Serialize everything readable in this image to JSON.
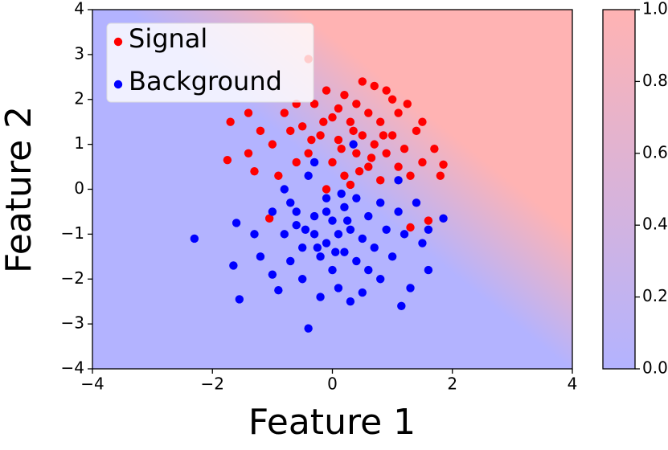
{
  "chart_data": {
    "type": "scatter",
    "xlabel": "Feature 1",
    "ylabel": "Feature 2",
    "xlim": [
      -4,
      4
    ],
    "ylim": [
      -4,
      4
    ],
    "xticks": [
      {
        "value": -4,
        "label": "−4"
      },
      {
        "value": -2,
        "label": "−2"
      },
      0,
      2,
      4
    ],
    "yticks": [
      {
        "value": -4,
        "label": "−4"
      },
      {
        "value": -3,
        "label": "−3"
      },
      {
        "value": -2,
        "label": "−2"
      },
      {
        "value": -1,
        "label": "−1"
      },
      0,
      1,
      2,
      3,
      4
    ],
    "legend": "upper left",
    "colorbar": {
      "colors": [
        "#b3b3ff",
        "#ffb3b3"
      ],
      "ylim": [
        0,
        1
      ],
      "yticks": [
        {
          "value": 0,
          "label": "0.0"
        },
        0.2,
        0.4,
        0.6,
        0.8,
        {
          "value": 1,
          "label": "1.0"
        }
      ]
    },
    "series": [
      {
        "name": "Signal",
        "color": "#ff0000",
        "x": [
          -0.4,
          -1.7,
          -1.75,
          -1.4,
          -1.2,
          -1.3,
          -1.0,
          -0.9,
          -0.8,
          -0.6,
          -0.5,
          -0.4,
          -0.3,
          -0.2,
          -0.1,
          0.0,
          0.0,
          0.1,
          0.2,
          0.2,
          0.3,
          0.4,
          0.4,
          0.5,
          0.5,
          0.6,
          0.6,
          0.7,
          0.7,
          0.8,
          0.8,
          0.9,
          0.9,
          1.0,
          1.1,
          1.1,
          1.2,
          1.3,
          1.4,
          1.5,
          1.5,
          1.7,
          1.85,
          1.8,
          1.6,
          1.3,
          -0.1,
          0.3,
          -0.6,
          0.1,
          0.35,
          -0.35,
          0.65,
          1.0,
          -0.15,
          0.45,
          0.85,
          1.25,
          -0.7,
          0.15,
          -1.4,
          -1.05
        ],
        "values": [
          2.9,
          1.5,
          0.65,
          1.7,
          1.3,
          0.4,
          1.0,
          0.3,
          1.7,
          1.9,
          1.4,
          0.8,
          1.9,
          1.2,
          2.2,
          1.6,
          0.6,
          1.1,
          2.1,
          0.3,
          1.5,
          1.9,
          0.8,
          2.4,
          1.2,
          0.5,
          1.7,
          2.3,
          1.0,
          1.5,
          0.2,
          2.2,
          0.8,
          1.2,
          0.5,
          1.7,
          0.9,
          0.3,
          1.3,
          0.6,
          1.5,
          0.9,
          0.55,
          0.3,
          -0.7,
          -0.85,
          0.0,
          0.1,
          0.6,
          1.8,
          1.3,
          1.1,
          0.7,
          2.0,
          1.5,
          0.4,
          1.2,
          1.9,
          1.3,
          0.9,
          0.8,
          -0.65
        ]
      },
      {
        "name": "Background",
        "color": "#0000ff",
        "x": [
          -2.3,
          -0.4,
          -1.55,
          1.85,
          1.15,
          0.35,
          -1.6,
          -1.65,
          -1.3,
          -1.2,
          -1.0,
          -1.0,
          -0.9,
          -0.8,
          -0.7,
          -0.7,
          -0.6,
          -0.5,
          -0.5,
          -0.4,
          -0.3,
          -0.3,
          -0.2,
          -0.2,
          -0.1,
          -0.1,
          0.0,
          0.0,
          0.1,
          0.1,
          0.2,
          0.2,
          0.3,
          0.3,
          0.4,
          0.4,
          0.5,
          0.5,
          0.6,
          0.6,
          0.7,
          0.8,
          0.8,
          0.9,
          1.0,
          1.1,
          1.1,
          1.2,
          1.3,
          1.4,
          1.5,
          1.6,
          1.6,
          -0.8,
          -0.3,
          -0.1,
          0.15,
          -0.6,
          -0.25,
          0.05,
          -0.45,
          0.25
        ],
        "values": [
          -1.1,
          -3.1,
          -2.45,
          -0.65,
          -2.6,
          1.0,
          -0.75,
          -1.7,
          -1.0,
          -1.5,
          -0.5,
          -1.9,
          -2.25,
          -1.0,
          -0.3,
          -1.6,
          -0.8,
          -1.3,
          -2.0,
          0.3,
          -0.6,
          -1.0,
          -1.5,
          -2.4,
          -0.2,
          -1.2,
          -0.7,
          -1.8,
          -1.0,
          -2.2,
          -0.4,
          -1.4,
          -0.9,
          -2.5,
          -0.2,
          -1.6,
          -1.1,
          -2.3,
          -0.6,
          -1.8,
          -1.3,
          -0.3,
          -2.0,
          -0.9,
          -1.5,
          0.2,
          -0.5,
          -1.0,
          -2.2,
          -0.3,
          -1.2,
          -1.8,
          -0.9,
          0.0,
          0.6,
          -0.5,
          -0.1,
          -0.5,
          -1.3,
          -1.4,
          -0.9,
          -0.7
        ]
      }
    ]
  }
}
